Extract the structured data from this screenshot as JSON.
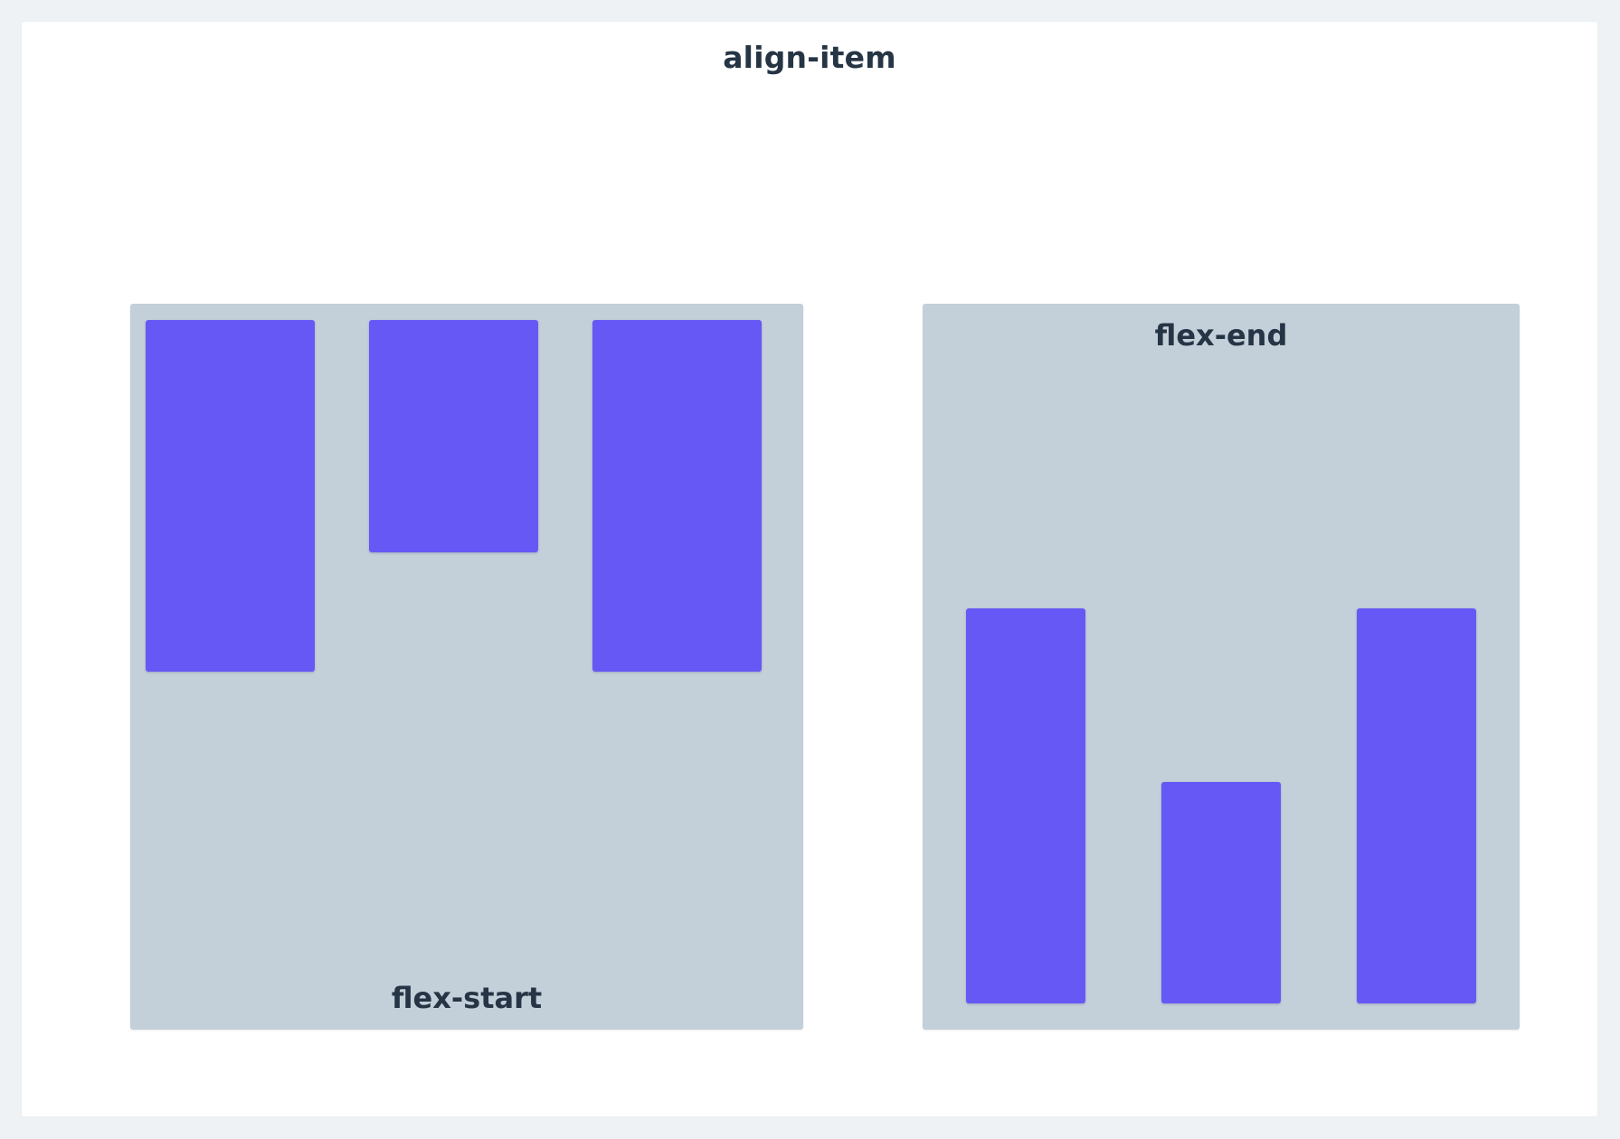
{
  "page": {
    "title": "align-item"
  },
  "examples": [
    {
      "label": "flex-start",
      "item_count": 3
    },
    {
      "label": "flex-end",
      "item_count": 3
    }
  ],
  "colors": {
    "background": "#eef2f5",
    "card": "#ffffff",
    "container": "#c3cfd9",
    "item": "#6658f5",
    "text": "#263545"
  }
}
